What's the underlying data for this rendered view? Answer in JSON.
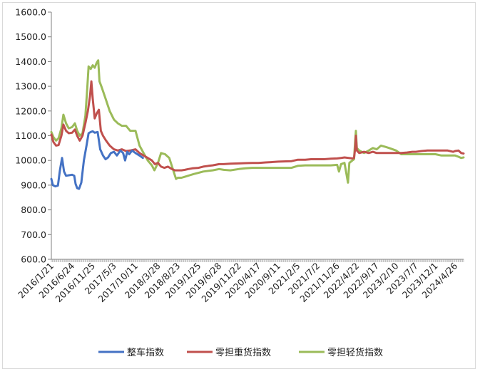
{
  "chart_data": {
    "type": "line",
    "title": "",
    "xlabel": "",
    "ylabel": "",
    "ylim": [
      600,
      1600
    ],
    "y_ticks": [
      "1600.0",
      "1500.0",
      "1400.0",
      "1300.0",
      "1200.0",
      "1100.0",
      "1000.0",
      "900.0",
      "800.0",
      "700.0",
      "600.0"
    ],
    "x_ticks": [
      "2016/1/21",
      "2016/6/24",
      "2016/11/25",
      "2017/5/3",
      "2017/10/11",
      "2018/3/28",
      "2018/8/23",
      "2019/1/25",
      "2019/6/28",
      "2019/11/22",
      "2020/4/17",
      "2020/9/11",
      "2021/2/5",
      "2021/7/2",
      "2021/11/26",
      "2022/4/22",
      "2022/9/17",
      "2023/2/10",
      "2023/7/7",
      "2023/12/1",
      "2024/4/26"
    ],
    "x_range": [
      "2016/1/21",
      "2024/6/28"
    ],
    "grid": false,
    "legend_position": "bottom",
    "series": [
      {
        "name": "整车指数",
        "color": "#4472c4",
        "points": [
          [
            "2016/1/21",
            925
          ],
          [
            "2016/2/1",
            900
          ],
          [
            "2016/2/20",
            895
          ],
          [
            "2016/3/10",
            898
          ],
          [
            "2016/3/25",
            960
          ],
          [
            "2016/4/10",
            1010
          ],
          [
            "2016/4/25",
            955
          ],
          [
            "2016/5/10",
            938
          ],
          [
            "2016/6/1",
            940
          ],
          [
            "2016/6/24",
            942
          ],
          [
            "2016/7/10",
            938
          ],
          [
            "2016/7/20",
            905
          ],
          [
            "2016/8/1",
            888
          ],
          [
            "2016/8/15",
            885
          ],
          [
            "2016/9/1",
            910
          ],
          [
            "2016/9/20",
            1000
          ],
          [
            "2016/10/10",
            1060
          ],
          [
            "2016/10/25",
            1110
          ],
          [
            "2016/11/10",
            1115
          ],
          [
            "2016/11/25",
            1118
          ],
          [
            "2016/12/10",
            1112
          ],
          [
            "2017/1/1",
            1115
          ],
          [
            "2017/1/20",
            1045
          ],
          [
            "2017/2/10",
            1020
          ],
          [
            "2017/3/1",
            1005
          ],
          [
            "2017/3/20",
            1012
          ],
          [
            "2017/4/10",
            1030
          ],
          [
            "2017/5/3",
            1035
          ],
          [
            "2017/5/25",
            1020
          ],
          [
            "2017/6/20",
            1040
          ],
          [
            "2017/7/10",
            1030
          ],
          [
            "2017/7/25",
            1000
          ],
          [
            "2017/8/10",
            1035
          ],
          [
            "2017/8/25",
            1025
          ],
          [
            "2017/9/15",
            1040
          ],
          [
            "2017/10/11",
            1030
          ],
          [
            "2017/11/10",
            1020
          ],
          [
            "2017/12/5",
            1010
          ]
        ]
      },
      {
        "name": "零担重货指数",
        "color": "#c0504d",
        "points": [
          [
            "2016/1/21",
            1105
          ],
          [
            "2016/2/5",
            1075
          ],
          [
            "2016/2/25",
            1060
          ],
          [
            "2016/3/15",
            1062
          ],
          [
            "2016/4/5",
            1100
          ],
          [
            "2016/4/20",
            1145
          ],
          [
            "2016/5/10",
            1120
          ],
          [
            "2016/5/30",
            1110
          ],
          [
            "2016/6/24",
            1112
          ],
          [
            "2016/7/15",
            1125
          ],
          [
            "2016/8/1",
            1100
          ],
          [
            "2016/8/20",
            1080
          ],
          [
            "2016/9/10",
            1100
          ],
          [
            "2016/10/1",
            1150
          ],
          [
            "2016/10/20",
            1200
          ],
          [
            "2016/11/5",
            1260
          ],
          [
            "2016/11/15",
            1320
          ],
          [
            "2016/11/25",
            1250
          ],
          [
            "2016/12/10",
            1170
          ],
          [
            "2016/12/25",
            1190
          ],
          [
            "2017/1/10",
            1205
          ],
          [
            "2017/1/25",
            1120
          ],
          [
            "2017/2/10",
            1100
          ],
          [
            "2017/3/5",
            1080
          ],
          [
            "2017/4/1",
            1060
          ],
          [
            "2017/5/3",
            1045
          ],
          [
            "2017/6/1",
            1040
          ],
          [
            "2017/7/1",
            1045
          ],
          [
            "2017/8/1",
            1038
          ],
          [
            "2017/9/1",
            1040
          ],
          [
            "2017/10/11",
            1045
          ],
          [
            "2017/11/10",
            1030
          ],
          [
            "2017/12/10",
            1020
          ],
          [
            "2018/1/10",
            1010
          ],
          [
            "2018/2/10",
            1000
          ],
          [
            "2018/3/5",
            985
          ],
          [
            "2018/3/28",
            990
          ],
          [
            "2018/4/20",
            975
          ],
          [
            "2018/5/15",
            970
          ],
          [
            "2018/6/10",
            975
          ],
          [
            "2018/7/10",
            965
          ],
          [
            "2018/8/1",
            960
          ],
          [
            "2018/8/23",
            960
          ],
          [
            "2018/9/20",
            960
          ],
          [
            "2018/10/15",
            962
          ],
          [
            "2018/11/10",
            965
          ],
          [
            "2018/12/10",
            968
          ],
          [
            "2019/1/25",
            970
          ],
          [
            "2019/3/1",
            975
          ],
          [
            "2019/4/10",
            978
          ],
          [
            "2019/5/10",
            980
          ],
          [
            "2019/6/28",
            985
          ],
          [
            "2019/8/1",
            985
          ],
          [
            "2019/9/20",
            987
          ],
          [
            "2019/11/22",
            988
          ],
          [
            "2020/1/10",
            989
          ],
          [
            "2020/3/1",
            990
          ],
          [
            "2020/4/17",
            990
          ],
          [
            "2020/6/10",
            992
          ],
          [
            "2020/7/20",
            993
          ],
          [
            "2020/9/11",
            995
          ],
          [
            "2020/10/20",
            996
          ],
          [
            "2020/12/20",
            997
          ],
          [
            "2021/2/5",
            1003
          ],
          [
            "2021/4/1",
            1003
          ],
          [
            "2021/5/15",
            1005
          ],
          [
            "2021/7/2",
            1005
          ],
          [
            "2021/8/20",
            1005
          ],
          [
            "2021/10/10",
            1007
          ],
          [
            "2021/11/26",
            1008
          ],
          [
            "2021/12/25",
            1010
          ],
          [
            "2022/1/20",
            1012
          ],
          [
            "2022/2/20",
            1010
          ],
          [
            "2022/3/20",
            1008
          ],
          [
            "2022/4/1",
            1010
          ],
          [
            "2022/4/10",
            1050
          ],
          [
            "2022/4/15",
            1100
          ],
          [
            "2022/4/22",
            1040
          ],
          [
            "2022/5/10",
            1030
          ],
          [
            "2022/6/15",
            1035
          ],
          [
            "2022/7/20",
            1030
          ],
          [
            "2022/8/20",
            1035
          ],
          [
            "2022/9/17",
            1030
          ],
          [
            "2022/11/1",
            1030
          ],
          [
            "2022/12/15",
            1030
          ],
          [
            "2023/2/10",
            1030
          ],
          [
            "2023/3/20",
            1030
          ],
          [
            "2023/5/1",
            1032
          ],
          [
            "2023/6/10",
            1035
          ],
          [
            "2023/7/7",
            1035
          ],
          [
            "2023/8/20",
            1038
          ],
          [
            "2023/10/1",
            1040
          ],
          [
            "2023/11/1",
            1040
          ],
          [
            "2023/12/1",
            1040
          ],
          [
            "2024/1/15",
            1040
          ],
          [
            "2024/3/1",
            1040
          ],
          [
            "2024/4/10",
            1035
          ],
          [
            "2024/4/26",
            1038
          ],
          [
            "2024/5/20",
            1040
          ],
          [
            "2024/6/10",
            1030
          ],
          [
            "2024/6/28",
            1028
          ]
        ]
      },
      {
        "name": "零担轻货指数",
        "color": "#9bbb59",
        "points": [
          [
            "2016/1/21",
            1115
          ],
          [
            "2016/2/5",
            1095
          ],
          [
            "2016/2/25",
            1080
          ],
          [
            "2016/3/15",
            1090
          ],
          [
            "2016/4/5",
            1130
          ],
          [
            "2016/4/20",
            1185
          ],
          [
            "2016/5/10",
            1150
          ],
          [
            "2016/5/30",
            1130
          ],
          [
            "2016/6/24",
            1135
          ],
          [
            "2016/7/15",
            1150
          ],
          [
            "2016/8/1",
            1120
          ],
          [
            "2016/8/20",
            1100
          ],
          [
            "2016/9/10",
            1110
          ],
          [
            "2016/10/1",
            1180
          ],
          [
            "2016/10/15",
            1290
          ],
          [
            "2016/10/25",
            1380
          ],
          [
            "2016/11/10",
            1370
          ],
          [
            "2016/11/25",
            1385
          ],
          [
            "2016/12/10",
            1375
          ],
          [
            "2016/12/25",
            1395
          ],
          [
            "2017/1/5",
            1405
          ],
          [
            "2017/1/15",
            1320
          ],
          [
            "2017/2/1",
            1295
          ],
          [
            "2017/3/1",
            1250
          ],
          [
            "2017/4/1",
            1200
          ],
          [
            "2017/5/3",
            1165
          ],
          [
            "2017/6/1",
            1150
          ],
          [
            "2017/7/1",
            1140
          ],
          [
            "2017/8/1",
            1140
          ],
          [
            "2017/9/1",
            1120
          ],
          [
            "2017/10/11",
            1120
          ],
          [
            "2017/11/10",
            1060
          ],
          [
            "2017/12/10",
            1030
          ],
          [
            "2018/1/10",
            1000
          ],
          [
            "2018/2/10",
            980
          ],
          [
            "2018/3/1",
            960
          ],
          [
            "2018/3/28",
            990
          ],
          [
            "2018/4/20",
            1030
          ],
          [
            "2018/5/20",
            1025
          ],
          [
            "2018/6/20",
            1010
          ],
          [
            "2018/7/20",
            960
          ],
          [
            "2018/8/10",
            925
          ],
          [
            "2018/8/23",
            930
          ],
          [
            "2018/9/20",
            930
          ],
          [
            "2018/10/20",
            935
          ],
          [
            "2018/11/20",
            940
          ],
          [
            "2018/12/20",
            945
          ],
          [
            "2019/1/25",
            950
          ],
          [
            "2019/3/1",
            955
          ],
          [
            "2019/4/10",
            958
          ],
          [
            "2019/5/10",
            960
          ],
          [
            "2019/6/28",
            965
          ],
          [
            "2019/8/1",
            962
          ],
          [
            "2019/9/20",
            960
          ],
          [
            "2019/11/22",
            965
          ],
          [
            "2020/1/10",
            968
          ],
          [
            "2020/3/1",
            970
          ],
          [
            "2020/4/17",
            970
          ],
          [
            "2020/6/10",
            970
          ],
          [
            "2020/7/20",
            970
          ],
          [
            "2020/9/11",
            970
          ],
          [
            "2020/10/20",
            970
          ],
          [
            "2020/12/20",
            970
          ],
          [
            "2021/2/5",
            978
          ],
          [
            "2021/4/1",
            980
          ],
          [
            "2021/5/15",
            980
          ],
          [
            "2021/7/2",
            980
          ],
          [
            "2021/8/20",
            980
          ],
          [
            "2021/10/10",
            980
          ],
          [
            "2021/11/26",
            982
          ],
          [
            "2021/12/10",
            955
          ],
          [
            "2021/12/25",
            985
          ],
          [
            "2022/1/20",
            990
          ],
          [
            "2022/2/15",
            910
          ],
          [
            "2022/2/25",
            990
          ],
          [
            "2022/3/20",
            1000
          ],
          [
            "2022/4/1",
            1005
          ],
          [
            "2022/4/10",
            1080
          ],
          [
            "2022/4/15",
            1120
          ],
          [
            "2022/4/22",
            1050
          ],
          [
            "2022/5/10",
            1040
          ],
          [
            "2022/6/15",
            1030
          ],
          [
            "2022/7/20",
            1040
          ],
          [
            "2022/8/20",
            1050
          ],
          [
            "2022/9/17",
            1045
          ],
          [
            "2022/10/20",
            1060
          ],
          [
            "2022/11/20",
            1055
          ],
          [
            "2022/12/20",
            1050
          ],
          [
            "2023/2/10",
            1040
          ],
          [
            "2023/3/20",
            1025
          ],
          [
            "2023/5/1",
            1025
          ],
          [
            "2023/6/10",
            1025
          ],
          [
            "2023/7/7",
            1025
          ],
          [
            "2023/8/20",
            1025
          ],
          [
            "2023/10/1",
            1025
          ],
          [
            "2023/11/1",
            1025
          ],
          [
            "2023/12/1",
            1025
          ],
          [
            "2024/1/15",
            1020
          ],
          [
            "2024/3/1",
            1020
          ],
          [
            "2024/4/10",
            1020
          ],
          [
            "2024/4/26",
            1020
          ],
          [
            "2024/5/20",
            1015
          ],
          [
            "2024/6/10",
            1010
          ],
          [
            "2024/6/28",
            1012
          ]
        ]
      }
    ]
  }
}
